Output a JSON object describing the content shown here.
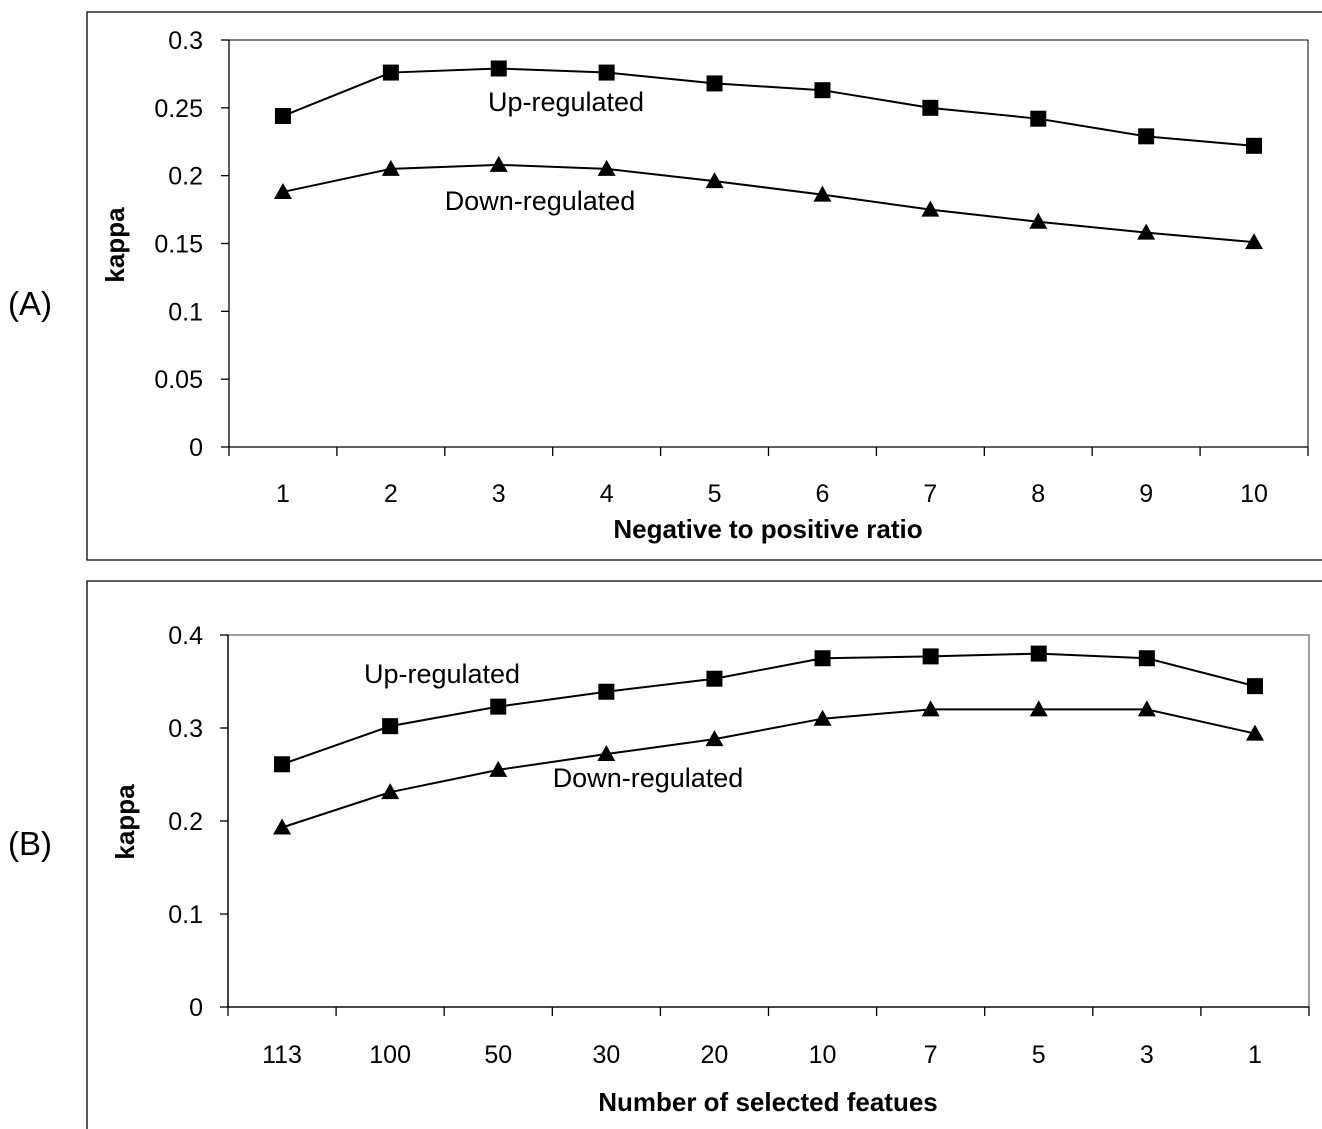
{
  "chart_data": [
    {
      "panel": "(A)",
      "type": "line",
      "title": "",
      "xlabel": "Negative to positive ratio",
      "ylabel": "kappa",
      "categories": [
        "1",
        "2",
        "3",
        "4",
        "5",
        "6",
        "7",
        "8",
        "9",
        "10"
      ],
      "ylim": [
        0,
        0.3
      ],
      "yticks": [
        "0",
        "0.05",
        "0.1",
        "0.15",
        "0.2",
        "0.25",
        "0.3"
      ],
      "grid": false,
      "legend": "none",
      "series": [
        {
          "name": "Up-regulated",
          "marker": "square",
          "values": [
            0.244,
            0.276,
            0.279,
            0.276,
            0.268,
            0.263,
            0.25,
            0.242,
            0.229,
            0.222
          ]
        },
        {
          "name": "Down-regulated",
          "marker": "triangle",
          "values": [
            0.188,
            0.205,
            0.208,
            0.205,
            0.196,
            0.186,
            0.175,
            0.166,
            0.158,
            0.151
          ]
        }
      ]
    },
    {
      "panel": "(B)",
      "type": "line",
      "title": "",
      "xlabel": "Number of selected featues",
      "ylabel": "kappa",
      "categories": [
        "113",
        "100",
        "50",
        "30",
        "20",
        "10",
        "7",
        "5",
        "3",
        "1"
      ],
      "ylim": [
        0,
        0.4
      ],
      "yticks": [
        "0",
        "0.1",
        "0.2",
        "0.3",
        "0.4"
      ],
      "grid": false,
      "legend": "none",
      "series": [
        {
          "name": "Up-regulated",
          "marker": "square",
          "values": [
            0.261,
            0.302,
            0.323,
            0.339,
            0.353,
            0.375,
            0.377,
            0.38,
            0.375,
            0.345
          ]
        },
        {
          "name": "Down-regulated",
          "marker": "triangle",
          "values": [
            0.193,
            0.231,
            0.255,
            0.272,
            0.288,
            0.31,
            0.32,
            0.32,
            0.32,
            0.294
          ]
        }
      ]
    }
  ]
}
